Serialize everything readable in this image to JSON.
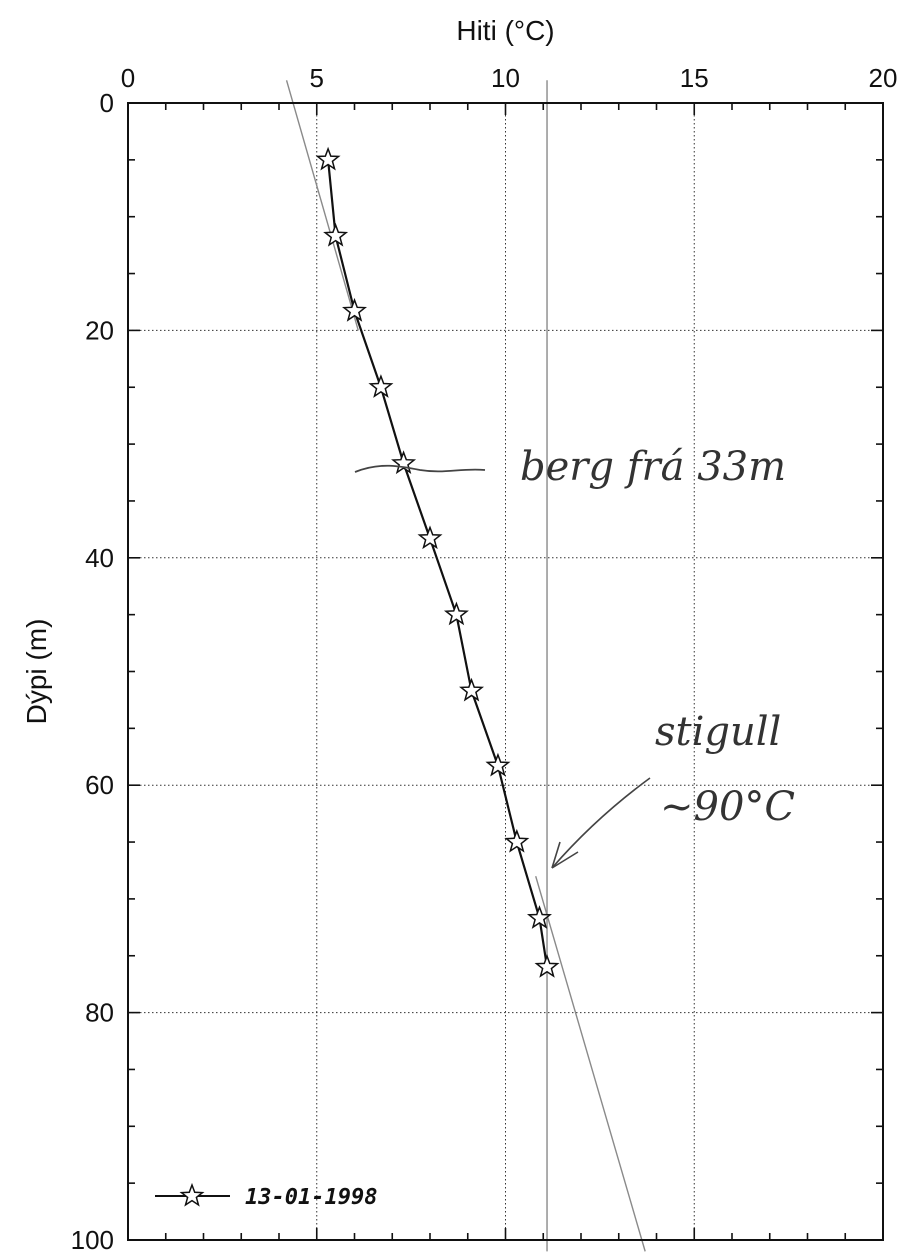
{
  "chart_data": {
    "type": "line",
    "x_axis": {
      "label": "Hiti (°C)",
      "position": "top",
      "range": [
        0,
        20
      ],
      "ticks": [
        0,
        5,
        10,
        15,
        20
      ],
      "tick_labels": [
        "0",
        "5",
        "10",
        "15",
        "20"
      ]
    },
    "y_axis": {
      "label": "Dýpi (m)",
      "range": [
        0,
        100
      ],
      "inverted": true,
      "ticks": [
        0,
        20,
        40,
        60,
        80,
        100
      ],
      "tick_labels": [
        "0",
        "20",
        "40",
        "60",
        "80",
        "100"
      ]
    },
    "grid": true,
    "legend": {
      "placement": "bottom-left"
    },
    "series": [
      {
        "name": "13-01-1998",
        "marker": "star",
        "color": "#111111",
        "points": [
          {
            "x": 5.3,
            "y": 5
          },
          {
            "x": 5.5,
            "y": 11.7
          },
          {
            "x": 6.0,
            "y": 18.3
          },
          {
            "x": 6.7,
            "y": 25
          },
          {
            "x": 7.3,
            "y": 31.7
          },
          {
            "x": 8.0,
            "y": 38.3
          },
          {
            "x": 8.7,
            "y": 45
          },
          {
            "x": 9.1,
            "y": 51.7
          },
          {
            "x": 9.8,
            "y": 58.3
          },
          {
            "x": 10.3,
            "y": 65
          },
          {
            "x": 10.9,
            "y": 71.7
          },
          {
            "x": 11.1,
            "y": 76
          }
        ]
      }
    ],
    "annotations": [
      {
        "text": "berg frá 33m",
        "handwritten": true
      },
      {
        "text": "stigull",
        "handwritten": true
      },
      {
        "text": "~90°C",
        "handwritten": true
      }
    ],
    "hand_drawn_lines": [
      {
        "from": {
          "x": 4.2,
          "y": -2
        },
        "to": {
          "x": 6.1,
          "y": 20
        }
      },
      {
        "from": {
          "x": 10.8,
          "y": 68
        },
        "to": {
          "x": 13.7,
          "y": 101
        }
      },
      {
        "from": {
          "x": 11.1,
          "y": -2
        },
        "to": {
          "x": 11.1,
          "y": 101
        }
      }
    ]
  }
}
